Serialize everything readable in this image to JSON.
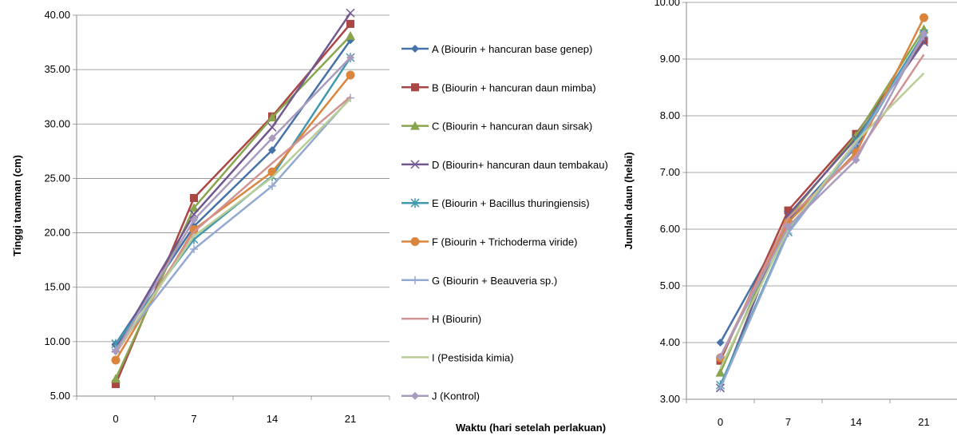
{
  "xlabel_shared": "Waktu (hari setelah perlakuan)",
  "legend": [
    {
      "name": "A (Biourin + hancuran base genep)",
      "color": "#4572A7",
      "marker": "diamond"
    },
    {
      "name": "B (Biourin + hancuran daun mimba)",
      "color": "#AA4643",
      "marker": "square"
    },
    {
      "name": "C (Biourin + hancuran daun  sirsak)",
      "color": "#89A54E",
      "marker": "triangle"
    },
    {
      "name": "D (Biourin+ hancuran daun tembakau)",
      "color": "#71588F",
      "marker": "x"
    },
    {
      "name": "E (Biourin + Bacillus thuringiensis)",
      "color": "#4198AF",
      "marker": "asterisk"
    },
    {
      "name": "F (Biourin + Trichoderma viride)",
      "color": "#DB843D",
      "marker": "circle"
    },
    {
      "name": "G (Biourin + Beauveria sp.)",
      "color": "#93A9CF",
      "marker": "plus"
    },
    {
      "name": "H (Biourin)",
      "color": "#D19392",
      "marker": "none"
    },
    {
      "name": "I (Pestisida kimia)",
      "color": "#B9CD96",
      "marker": "none"
    },
    {
      "name": "J (Kontrol)",
      "color": "#A99BBD",
      "marker": "diamond"
    }
  ],
  "chart_data": [
    {
      "type": "line",
      "ylabel": "Tinggi tanaman (cm)",
      "xlabel": "",
      "categories": [
        "0",
        "7",
        "14",
        "21"
      ],
      "ylim": [
        5,
        40
      ],
      "yticks": [
        "5.00",
        "10.00",
        "15.00",
        "20.00",
        "25.00",
        "30.00",
        "35.00",
        "40.00"
      ],
      "grid": true,
      "series": [
        {
          "name": "A (Biourin + hancuran base genep)",
          "values": [
            9.8,
            20.6,
            27.6,
            37.7
          ]
        },
        {
          "name": "B (Biourin + hancuran daun mimba)",
          "values": [
            6.1,
            23.2,
            30.7,
            39.2
          ]
        },
        {
          "name": "C (Biourin + hancuran daun  sirsak)",
          "values": [
            6.6,
            22.3,
            30.6,
            38.1
          ]
        },
        {
          "name": "D (Biourin+ hancuran daun tembakau)",
          "values": [
            9.4,
            21.7,
            29.7,
            40.2
          ]
        },
        {
          "name": "E (Biourin + Bacillus thuringiensis)",
          "values": [
            9.8,
            19.4,
            25.2,
            36.1
          ]
        },
        {
          "name": "F (Biourin + Trichoderma viride)",
          "values": [
            8.3,
            20.3,
            25.6,
            34.5
          ]
        },
        {
          "name": "G (Biourin + Beauveria sp.)",
          "values": [
            9.3,
            18.5,
            24.3,
            32.4
          ]
        },
        {
          "name": "H (Biourin)",
          "values": [
            8.9,
            20.1,
            26.4,
            32.5
          ]
        },
        {
          "name": "I (Pestisida kimia)",
          "values": [
            9.1,
            19.7,
            25.1,
            32.3
          ]
        },
        {
          "name": "J (Kontrol)",
          "values": [
            9.1,
            21.2,
            28.7,
            36.1
          ]
        }
      ]
    },
    {
      "type": "line",
      "ylabel": "Jumlah daun (helai)",
      "xlabel": "",
      "categories": [
        "0",
        "7",
        "14",
        "21"
      ],
      "ylim": [
        3,
        10
      ],
      "yticks": [
        "3.00",
        "4.00",
        "5.00",
        "6.00",
        "7.00",
        "8.00",
        "9.00",
        "10.00"
      ],
      "grid": true,
      "series": [
        {
          "name": "A (Biourin + hancuran base genep)",
          "values": [
            4.0,
            6.15,
            7.45,
            9.45
          ]
        },
        {
          "name": "B (Biourin + hancuran daun mimba)",
          "values": [
            3.68,
            6.33,
            7.68,
            9.33
          ]
        },
        {
          "name": "C (Biourin + hancuran daun  sirsak)",
          "values": [
            3.47,
            6.2,
            7.65,
            9.53
          ]
        },
        {
          "name": "D (Biourin+ hancuran daun tembakau)",
          "values": [
            3.2,
            6.25,
            7.6,
            9.3
          ]
        },
        {
          "name": "E (Biourin + Bacillus thuringiensis)",
          "values": [
            3.25,
            5.95,
            7.55,
            9.45
          ]
        },
        {
          "name": "F (Biourin + Trichoderma viride)",
          "values": [
            3.73,
            6.12,
            7.35,
            9.73
          ]
        },
        {
          "name": "G (Biourin + Beauveria sp.)",
          "values": [
            3.2,
            5.93,
            7.5,
            9.4
          ]
        },
        {
          "name": "H (Biourin)",
          "values": [
            3.75,
            6.2,
            7.3,
            9.08
          ]
        },
        {
          "name": "I (Pestisida kimia)",
          "values": [
            3.55,
            6.0,
            7.55,
            8.75
          ]
        },
        {
          "name": "J (Kontrol)",
          "values": [
            3.75,
            6.05,
            7.22,
            9.45
          ]
        }
      ]
    }
  ]
}
